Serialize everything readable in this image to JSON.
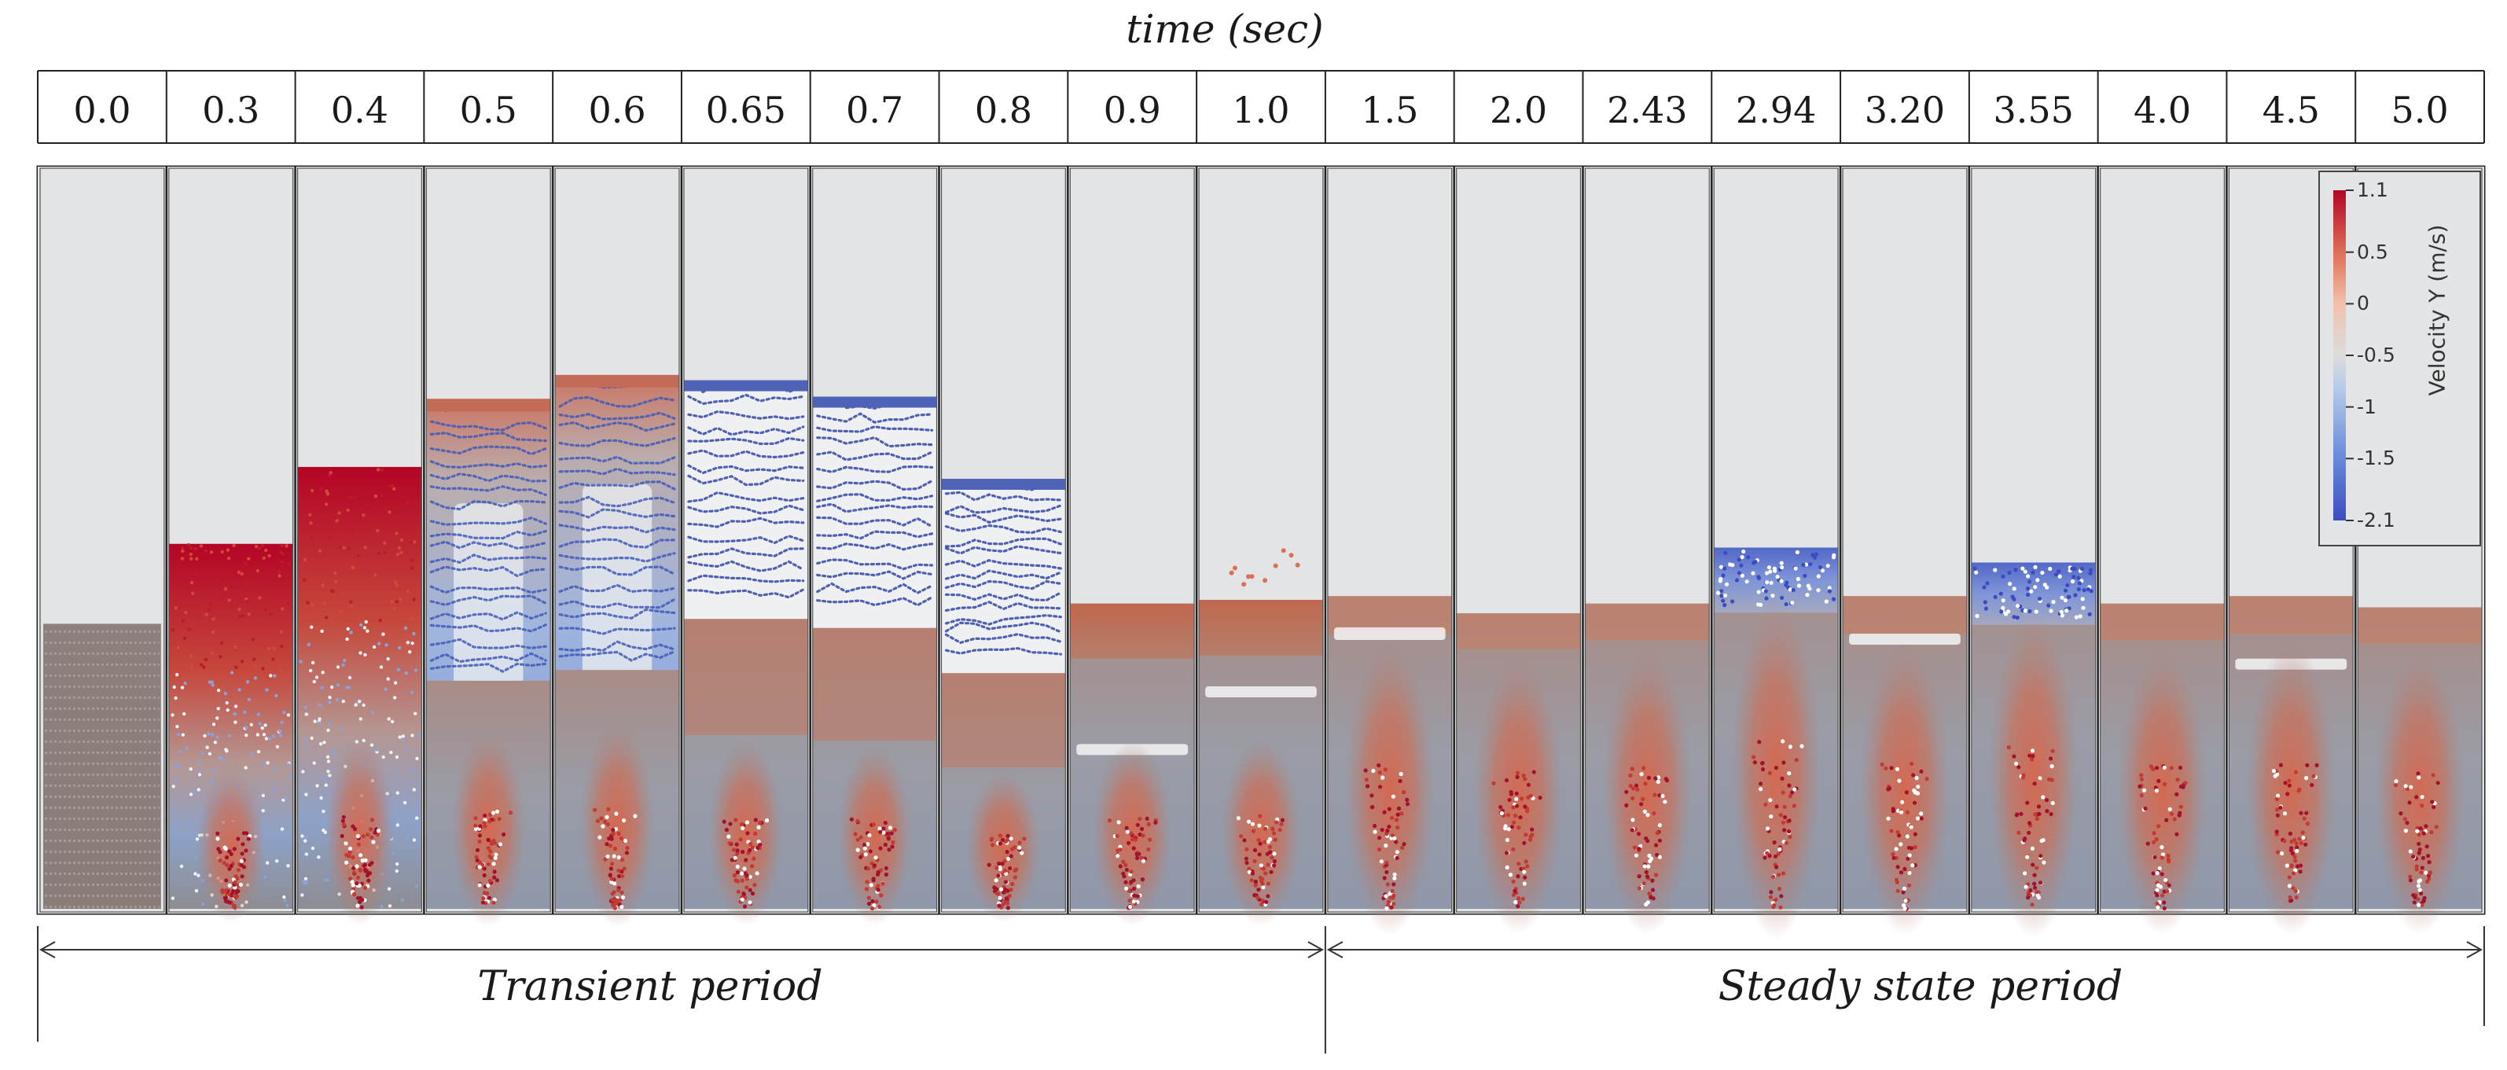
{
  "header": {
    "axis_label": "time (sec)"
  },
  "frames": [
    {
      "time": "0.0",
      "bed_top": 0.612,
      "profile": "initial"
    },
    {
      "time": "0.3",
      "bed_top": 0.505,
      "profile": "rising"
    },
    {
      "time": "0.4",
      "bed_top": 0.402,
      "profile": "rising"
    },
    {
      "time": "0.5",
      "bed_top": 0.315,
      "profile": "expanding"
    },
    {
      "time": "0.6",
      "bed_top": 0.283,
      "profile": "expanding"
    },
    {
      "time": "0.65",
      "bed_top": 0.288,
      "profile": "falling"
    },
    {
      "time": "0.7",
      "bed_top": 0.31,
      "profile": "falling"
    },
    {
      "time": "0.8",
      "bed_top": 0.42,
      "profile": "falling"
    },
    {
      "time": "0.9",
      "bed_top": 0.585,
      "profile": "settling"
    },
    {
      "time": "1.0",
      "bed_top": 0.58,
      "profile": "settling"
    },
    {
      "time": "1.5",
      "bed_top": 0.575,
      "profile": "steady"
    },
    {
      "time": "2.0",
      "bed_top": 0.598,
      "profile": "steady"
    },
    {
      "time": "2.43",
      "bed_top": 0.585,
      "profile": "steady"
    },
    {
      "time": "2.94",
      "bed_top": 0.51,
      "profile": "bubble"
    },
    {
      "time": "3.20",
      "bed_top": 0.575,
      "profile": "steady"
    },
    {
      "time": "3.55",
      "bed_top": 0.53,
      "profile": "bubble"
    },
    {
      "time": "4.0",
      "bed_top": 0.585,
      "profile": "steady"
    },
    {
      "time": "4.5",
      "bed_top": 0.575,
      "profile": "steady"
    },
    {
      "time": "5.0",
      "bed_top": 0.59,
      "profile": "steady"
    }
  ],
  "periods": [
    {
      "label": "Transient period",
      "from_frame": 0,
      "to_frame": 9
    },
    {
      "label": "Steady state period",
      "from_frame": 10,
      "to_frame": 18
    }
  ],
  "colorbar": {
    "title": "Velocity Y  (m/s)",
    "max": 1.1,
    "min": -2.1,
    "ticks": [
      "1.1",
      "0.5",
      "0",
      "-0.5",
      "-1",
      "-1.5",
      "-2.1"
    ],
    "tick_values": [
      1.1,
      0.5,
      0,
      -0.5,
      -1,
      -1.5,
      -2.1
    ],
    "colors": {
      "high": "#b40426",
      "mid_high": "#e8775e",
      "neutral": "#dddcdc",
      "mid_low": "#85a8e8",
      "low": "#3b4cc0"
    }
  },
  "colors": {
    "chamber_bg": "#e2e4e6",
    "frame_border": "#222222",
    "particle_base": "#8a7a76"
  }
}
